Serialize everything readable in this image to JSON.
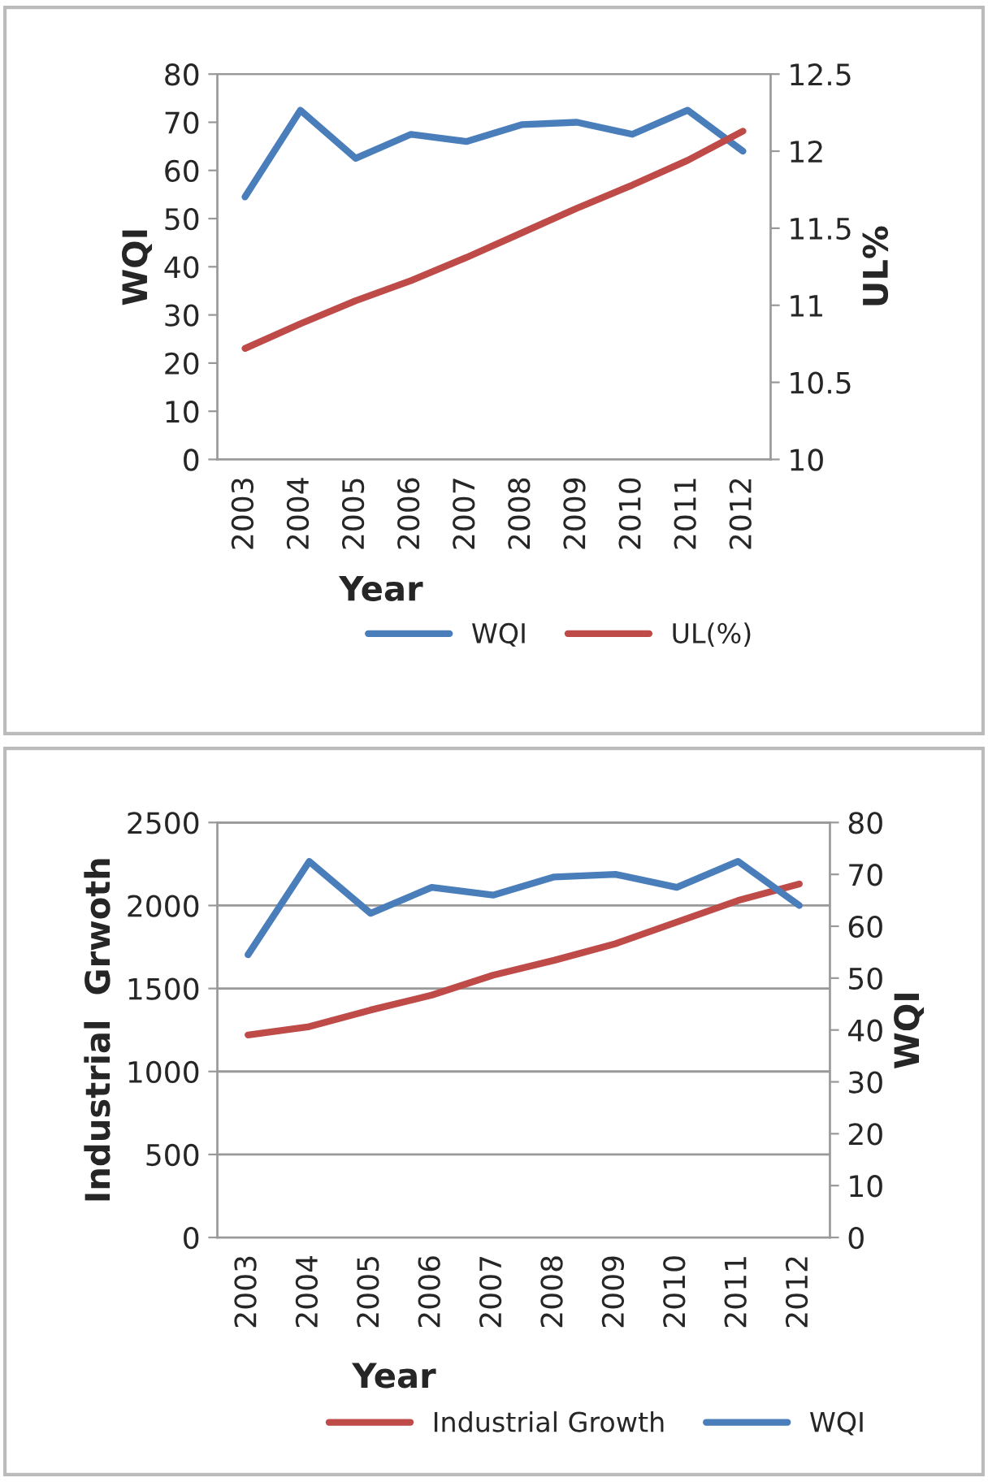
{
  "chart_data": [
    {
      "type": "line",
      "xlabel": "Year",
      "ylabel": "WQI",
      "y2label": "UL%",
      "categories": [
        "2003",
        "2004",
        "2005",
        "2006",
        "2007",
        "2008",
        "2009",
        "2010",
        "2011",
        "2012"
      ],
      "series": [
        {
          "name": "WQI",
          "color": "#4a7ebb",
          "values": [
            54.5,
            72.5,
            62.5,
            67.5,
            66,
            69.5,
            70,
            67.5,
            72.5,
            64
          ]
        },
        {
          "name": "UL(%)",
          "color": "#be4b48",
          "axis": "y2",
          "values": [
            10.72,
            10.88,
            11.03,
            11.16,
            11.31,
            11.47,
            11.63,
            11.78,
            11.94,
            12.13
          ]
        }
      ],
      "ylim": [
        0,
        80
      ],
      "yticks": [
        0,
        10,
        20,
        30,
        40,
        50,
        60,
        70,
        80
      ],
      "y2lim": [
        10,
        12.5
      ],
      "y2ticks": [
        10,
        10.5,
        11,
        11.5,
        12,
        12.5
      ],
      "grid": false,
      "legend": "bottom"
    },
    {
      "type": "line",
      "xlabel": "Year",
      "ylabel": "Industrial  Grwoth",
      "y2label": "WQI",
      "categories": [
        "2003",
        "2004",
        "2005",
        "2006",
        "2007",
        "2008",
        "2009",
        "2010",
        "2011",
        "2012"
      ],
      "series": [
        {
          "name": "Industrial Growth",
          "color": "#be4b48",
          "values": [
            1220,
            1270,
            1370,
            1460,
            1580,
            1670,
            1770,
            1900,
            2030,
            2130
          ]
        },
        {
          "name": "WQI",
          "color": "#4a7ebb",
          "axis": "y2",
          "values": [
            54.5,
            72.5,
            62.5,
            67.5,
            66,
            69.5,
            70,
            67.5,
            72.5,
            64
          ]
        }
      ],
      "ylim": [
        0,
        2500
      ],
      "yticks": [
        0,
        500,
        1000,
        1500,
        2000,
        2500
      ],
      "y2lim": [
        0,
        80
      ],
      "y2ticks": [
        0,
        10,
        20,
        30,
        40,
        50,
        60,
        70,
        80
      ],
      "grid": "y",
      "legend": "bottom"
    }
  ]
}
